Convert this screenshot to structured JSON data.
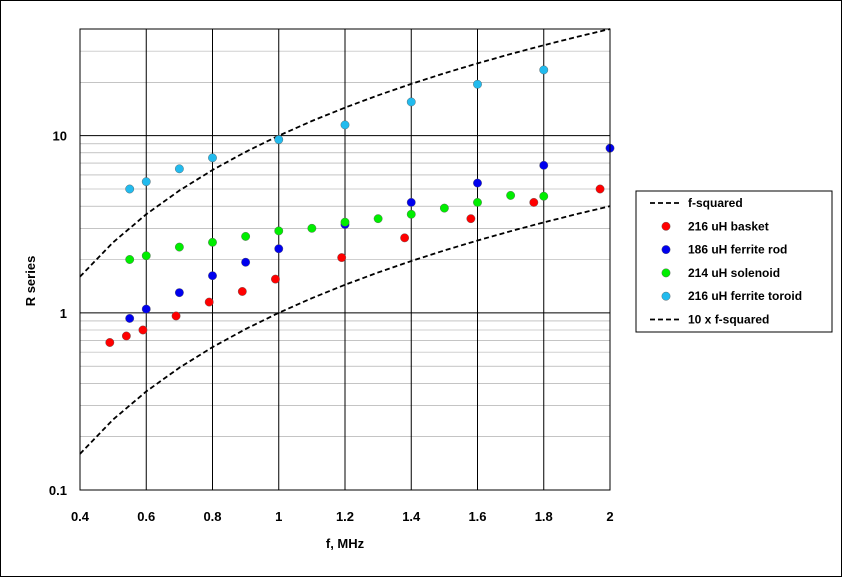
{
  "chart_data": {
    "type": "scatter",
    "title": "",
    "xlabel": "f, MHz",
    "ylabel": "R series",
    "xlim": [
      0.4,
      2
    ],
    "ylim": [
      0.1,
      40
    ],
    "yscale": "log",
    "grid": true,
    "legend_position": "right",
    "x_ticks": [
      "0.4",
      "0.6",
      "0.8",
      "1",
      "1.2",
      "1.4",
      "1.6",
      "1.8",
      "2"
    ],
    "y_ticks": [
      "0.1",
      "1",
      "10"
    ],
    "series": [
      {
        "name": "f-squared",
        "kind": "line",
        "style": "dashed",
        "color": "#000000",
        "x": [
          0.4,
          0.5,
          0.6,
          0.7,
          0.8,
          0.9,
          1.0,
          1.1,
          1.2,
          1.3,
          1.4,
          1.5,
          1.6,
          1.7,
          1.8,
          1.9,
          2.0
        ],
        "y": [
          0.16,
          0.25,
          0.36,
          0.49,
          0.64,
          0.81,
          1.0,
          1.21,
          1.44,
          1.69,
          1.96,
          2.25,
          2.56,
          2.89,
          3.24,
          3.61,
          4.0
        ]
      },
      {
        "name": "216 uH basket",
        "kind": "scatter",
        "color": "#ff0000",
        "x": [
          0.49,
          0.54,
          0.59,
          0.69,
          0.79,
          0.89,
          0.99,
          1.19,
          1.38,
          1.58,
          1.77,
          1.97
        ],
        "y": [
          0.68,
          0.74,
          0.8,
          0.96,
          1.15,
          1.32,
          1.55,
          2.05,
          2.65,
          3.4,
          4.2,
          5.0
        ]
      },
      {
        "name": "186 uH ferrite rod",
        "kind": "scatter",
        "color": "#0000ee",
        "x": [
          0.55,
          0.6,
          0.7,
          0.8,
          0.9,
          1.0,
          1.2,
          1.4,
          1.6,
          1.8,
          2.0
        ],
        "y": [
          0.93,
          1.05,
          1.3,
          1.62,
          1.93,
          2.3,
          3.15,
          4.2,
          5.4,
          6.8,
          8.5
        ]
      },
      {
        "name": "214 uH solenoid",
        "kind": "scatter",
        "color": "#00ee00",
        "x": [
          0.55,
          0.6,
          0.7,
          0.8,
          0.9,
          1.0,
          1.1,
          1.2,
          1.3,
          1.4,
          1.5,
          1.6,
          1.7,
          1.8
        ],
        "y": [
          2.0,
          2.1,
          2.35,
          2.5,
          2.7,
          2.9,
          3.0,
          3.25,
          3.4,
          3.6,
          3.9,
          4.2,
          4.6,
          4.55
        ]
      },
      {
        "name": "216 uH ferrite toroid",
        "kind": "scatter",
        "color": "#22bbee",
        "x": [
          0.55,
          0.6,
          0.7,
          0.8,
          1.0,
          1.2,
          1.4,
          1.6,
          1.8
        ],
        "y": [
          5.0,
          5.5,
          6.5,
          7.5,
          9.5,
          11.5,
          15.5,
          19.5,
          23.5
        ]
      },
      {
        "name": "10 x f-squared",
        "kind": "line",
        "style": "dashed",
        "color": "#000000",
        "x": [
          0.4,
          0.5,
          0.6,
          0.7,
          0.8,
          0.9,
          1.0,
          1.1,
          1.2,
          1.3,
          1.4,
          1.5,
          1.6,
          1.7,
          1.8,
          1.9,
          2.0
        ],
        "y": [
          1.6,
          2.5,
          3.6,
          4.9,
          6.4,
          8.1,
          10.0,
          12.1,
          14.4,
          16.9,
          19.6,
          22.5,
          25.6,
          28.9,
          32.4,
          36.1,
          40.0
        ]
      }
    ]
  }
}
